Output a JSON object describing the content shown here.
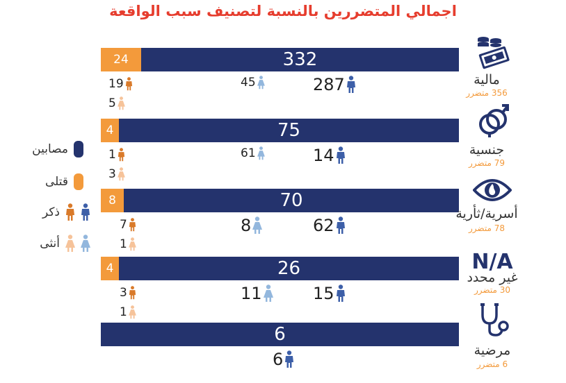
{
  "title": "اجمالي المتضررين بالنسبة لتصنيف سبب الواقعة",
  "colors": {
    "injured": "#24336d",
    "killed": "#f39a3b",
    "male_injured": "#3d5fa8",
    "female_injured": "#93b7dd",
    "male_killed": "#d97a2a",
    "female_killed": "#f6c39a"
  },
  "legend": {
    "injured": "مصابين",
    "killed": "قتلى",
    "male": "ذكر",
    "female": "أنثى"
  },
  "chart_data": {
    "type": "bar",
    "title": "اجمالي المتضررين بالنسبة لتصنيف سبب الواقعة",
    "categories": [
      "مالية",
      "جنسية",
      "أسرية/ثأرية",
      "غير محدد",
      "مرضية"
    ],
    "totals": [
      "356 متضرر",
      "79 متضرر",
      "78 متضرر",
      "30 متضرر",
      "6 متضرر"
    ],
    "series": [
      {
        "name": "مصابين",
        "values": [
          332,
          75,
          70,
          26,
          6
        ]
      },
      {
        "name": "قتلى",
        "values": [
          24,
          4,
          8,
          4,
          0
        ]
      }
    ],
    "injured_male": [
      287,
      14,
      62,
      15,
      6
    ],
    "injured_female": [
      45,
      61,
      8,
      11,
      0
    ],
    "killed_male": [
      19,
      1,
      7,
      3,
      0
    ],
    "killed_female": [
      5,
      3,
      1,
      1,
      0
    ],
    "extra_label": "N/A",
    "icons": [
      "money-icon",
      "gender-icon",
      "eye-fire-icon",
      "na-icon",
      "stethoscope-icon"
    ]
  }
}
